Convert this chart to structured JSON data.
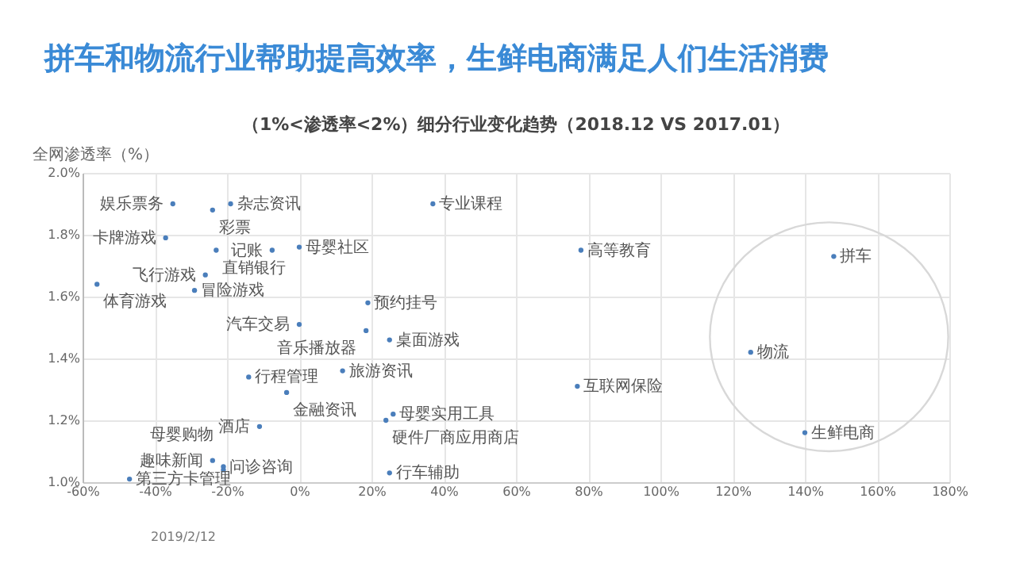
{
  "chart_data": {
    "type": "scatter",
    "title": "拼车和物流行业帮助提高效率，生鲜电商满足人们生活消费",
    "subtitle": "（1%<渗透率<2%）细分行业变化趋势（2018.12  VS 2017.01）",
    "ylabel": "全网渗透率（%）",
    "series": [
      {
        "color": "#4a7ebb",
        "x": [
          -35,
          -19,
          -24,
          -37,
          -23,
          -7.5,
          0,
          -26,
          -56,
          -29,
          0,
          -14,
          -3.5,
          -11,
          -24,
          -21,
          -21,
          -47,
          37,
          78,
          19,
          18.5,
          25,
          12,
          77,
          26,
          24,
          25,
          148,
          125,
          140
        ],
        "values": [
          1.9,
          1.9,
          1.88,
          1.79,
          1.75,
          1.75,
          1.76,
          1.67,
          1.64,
          1.62,
          1.51,
          1.34,
          1.29,
          1.18,
          1.07,
          1.05,
          1.04,
          1.01,
          1.9,
          1.75,
          1.58,
          1.49,
          1.46,
          1.36,
          1.31,
          1.22,
          1.2,
          1.03,
          1.73,
          1.42,
          1.16
        ]
      }
    ],
    "annotations": [
      {
        "text": "娱乐票务",
        "x": -35,
        "y": 1.9
      },
      {
        "text": "杂志资讯",
        "x": -19,
        "y": 1.9
      },
      {
        "text": "彩票",
        "x": -24,
        "y": 1.88
      },
      {
        "text": "卡牌游戏",
        "x": -37,
        "y": 1.79
      },
      {
        "text": "直销银行",
        "x": -23,
        "y": 1.75
      },
      {
        "text": "记账",
        "x": -7.5,
        "y": 1.75
      },
      {
        "text": "母婴社区",
        "x": 0,
        "y": 1.76
      },
      {
        "text": "飞行游戏",
        "x": -26,
        "y": 1.67
      },
      {
        "text": "体育游戏",
        "x": -56,
        "y": 1.64
      },
      {
        "text": "冒险游戏",
        "x": -29,
        "y": 1.62
      },
      {
        "text": "汽车交易",
        "x": 0,
        "y": 1.51
      },
      {
        "text": "行程管理",
        "x": -14,
        "y": 1.34
      },
      {
        "text": "金融资讯",
        "x": -3.5,
        "y": 1.29
      },
      {
        "text": "酒店",
        "x": -11,
        "y": 1.18
      },
      {
        "text": "趣味新闻",
        "x": -24,
        "y": 1.07
      },
      {
        "text": "问诊咨询",
        "x": -21,
        "y": 1.05
      },
      {
        "text": "母婴购物",
        "x": -21,
        "y": 1.04
      },
      {
        "text": "第三方卡管理",
        "x": -47,
        "y": 1.01
      },
      {
        "text": "专业课程",
        "x": 37,
        "y": 1.9
      },
      {
        "text": "高等教育",
        "x": 78,
        "y": 1.75
      },
      {
        "text": "预约挂号",
        "x": 19,
        "y": 1.58
      },
      {
        "text": "音乐播放器",
        "x": 18.5,
        "y": 1.49
      },
      {
        "text": "桌面游戏",
        "x": 25,
        "y": 1.46
      },
      {
        "text": "旅游资讯",
        "x": 12,
        "y": 1.36
      },
      {
        "text": "互联网保险",
        "x": 77,
        "y": 1.31
      },
      {
        "text": "母婴实用工具",
        "x": 26,
        "y": 1.22
      },
      {
        "text": "硬件厂商应用商店",
        "x": 24,
        "y": 1.2
      },
      {
        "text": "行车辅助",
        "x": 25,
        "y": 1.03
      },
      {
        "text": "拼车",
        "x": 148,
        "y": 1.73
      },
      {
        "text": "物流",
        "x": 125,
        "y": 1.42
      },
      {
        "text": "生鲜电商",
        "x": 140,
        "y": 1.16
      },
      "2019/2/12"
    ],
    "xlim": [
      -60,
      180
    ],
    "xticks": [
      {
        "value": -60,
        "label": "-60%"
      },
      {
        "value": -40,
        "label": "-40%"
      },
      {
        "value": -20,
        "label": "-20%"
      },
      {
        "value": 0,
        "label": "0%"
      },
      {
        "value": 20,
        "label": "20%"
      },
      {
        "value": 40,
        "label": "40%"
      },
      {
        "value": 60,
        "label": "60%"
      },
      {
        "value": 80,
        "label": "80%"
      },
      {
        "value": 100,
        "label": "100%"
      },
      {
        "value": 120,
        "label": "120%"
      },
      {
        "value": 140,
        "label": "140%"
      },
      {
        "value": 160,
        "label": "160%"
      },
      {
        "value": 180,
        "label": "180%"
      }
    ],
    "ylim": [
      1.0,
      2.0
    ],
    "yticks": [
      {
        "value": 1.0,
        "label": "1.0%"
      },
      {
        "value": 1.2,
        "label": "1.2%"
      },
      {
        "value": 1.4,
        "label": "1.4%"
      },
      {
        "value": 1.6,
        "label": "1.6%"
      },
      {
        "value": 1.8,
        "label": "1.8%"
      },
      {
        "value": 2.0,
        "label": "2.0%"
      }
    ],
    "grid": true,
    "marker": "circle"
  }
}
